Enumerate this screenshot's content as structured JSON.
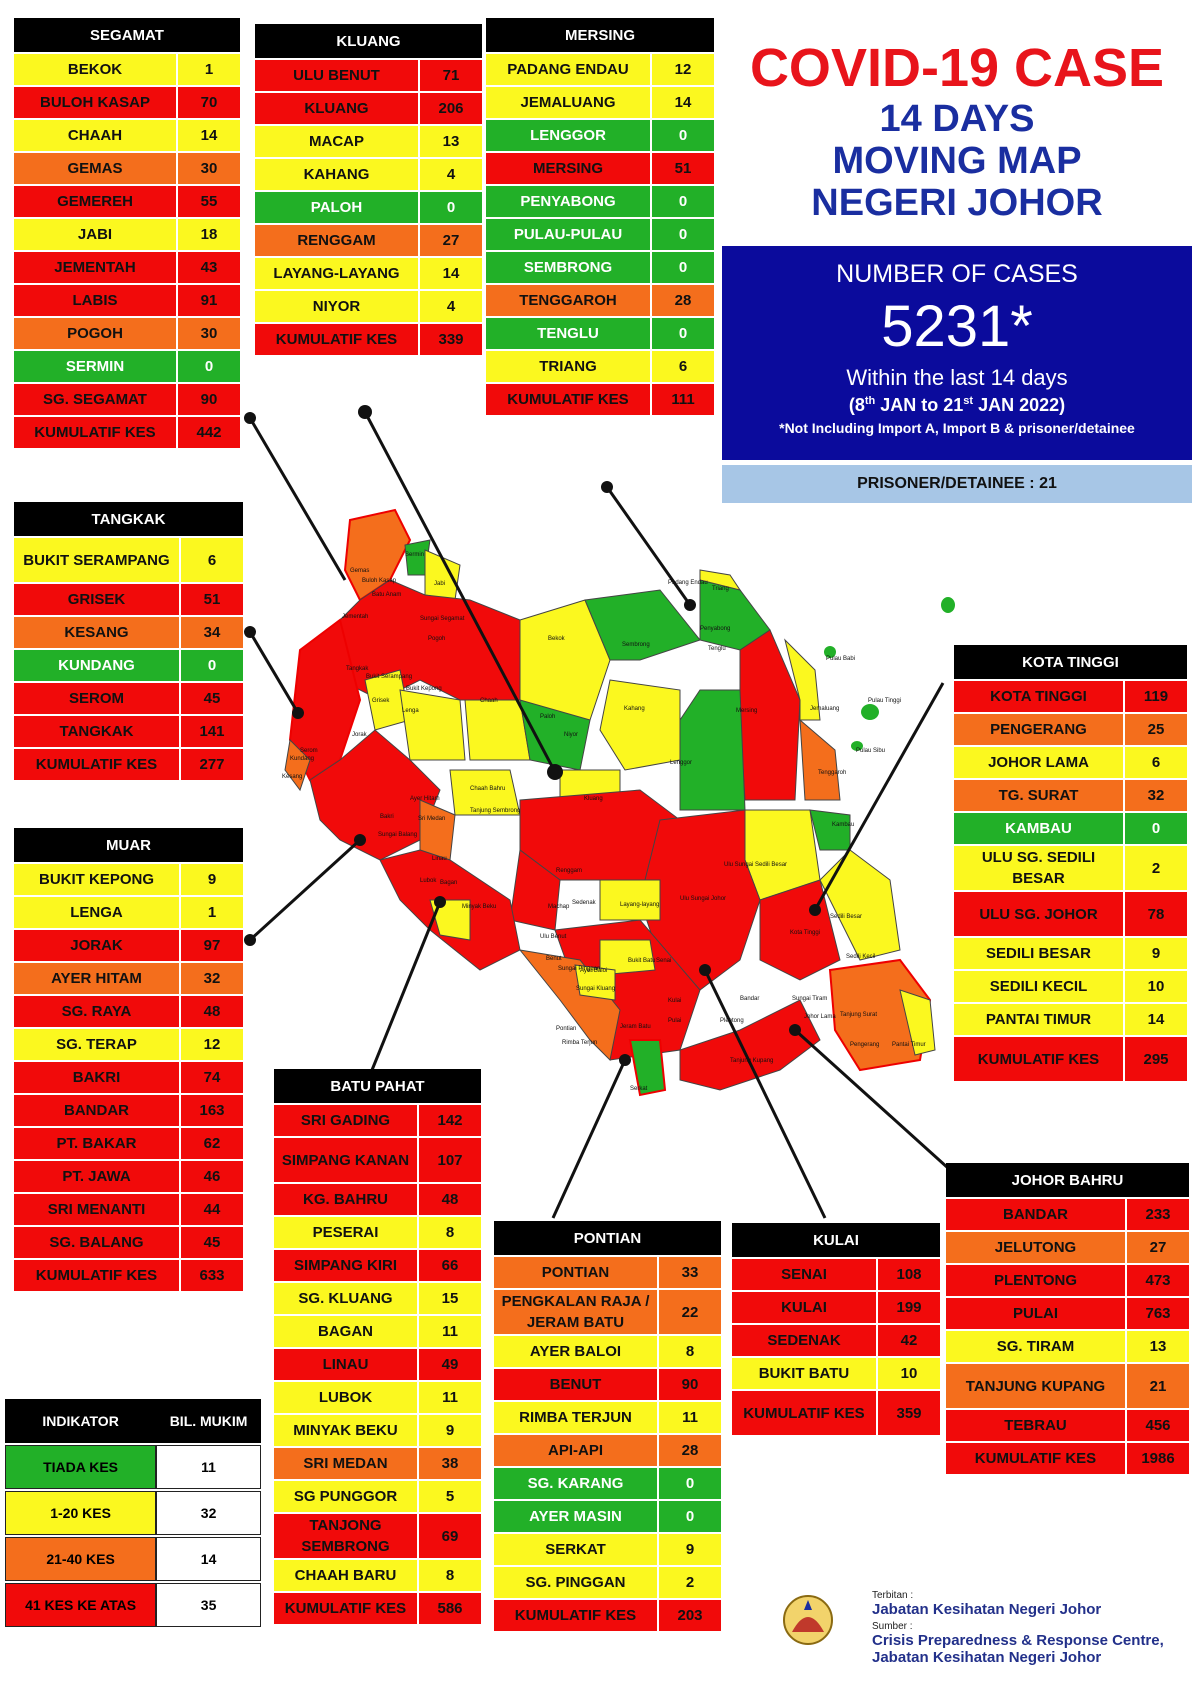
{
  "header": {
    "title_line1": "COVID-19 CASE",
    "title_line2": "14 DAYS",
    "title_line3": "MOVING MAP",
    "title_line4": "NEGERI JOHOR"
  },
  "summary": {
    "label": "NUMBER OF CASES",
    "total": "5231*",
    "window": "Within the last 14 days",
    "range_a": "(8",
    "range_a_sup": "th",
    "range_b": " JAN to 21",
    "range_b_sup": "st",
    "range_c": " JAN 2022)",
    "note": "*Not Including Import A, Import B & prisoner/detainee",
    "prisoner": "PRISONER/DETAINEE : 21"
  },
  "colors": {
    "green": "#22b028",
    "yellow": "#fbf81f",
    "orange": "#f46e1c",
    "red": "#f10a0a",
    "title_red": "#e8141b",
    "title_blue": "#1a2ea0",
    "box_blue": "#0b0b9c",
    "prisoner_blue": "#a7c6e6"
  },
  "districts": {
    "segamat": {
      "name": "SEGAMAT",
      "rows": [
        {
          "name": "BEKOK",
          "val": "1",
          "c": "yellow"
        },
        {
          "name": "BULOH KASAP",
          "val": "70",
          "c": "red"
        },
        {
          "name": "CHAAH",
          "val": "14",
          "c": "yellow"
        },
        {
          "name": "GEMAS",
          "val": "30",
          "c": "orange"
        },
        {
          "name": "GEMEREH",
          "val": "55",
          "c": "red"
        },
        {
          "name": "JABI",
          "val": "18",
          "c": "yellow"
        },
        {
          "name": "JEMENTAH",
          "val": "43",
          "c": "red"
        },
        {
          "name": "LABIS",
          "val": "91",
          "c": "red"
        },
        {
          "name": "POGOH",
          "val": "30",
          "c": "orange"
        },
        {
          "name": "SERMIN",
          "val": "0",
          "c": "green"
        },
        {
          "name": "SG. SEGAMAT",
          "val": "90",
          "c": "red"
        },
        {
          "name": "KUMULATIF KES",
          "val": "442",
          "c": "red"
        }
      ]
    },
    "kluang": {
      "name": "KLUANG",
      "rows": [
        {
          "name": "ULU BENUT",
          "val": "71",
          "c": "red"
        },
        {
          "name": "KLUANG",
          "val": "206",
          "c": "red"
        },
        {
          "name": "MACAP",
          "val": "13",
          "c": "yellow"
        },
        {
          "name": "KAHANG",
          "val": "4",
          "c": "yellow"
        },
        {
          "name": "PALOH",
          "val": "0",
          "c": "green"
        },
        {
          "name": "RENGGAM",
          "val": "27",
          "c": "orange"
        },
        {
          "name": "LAYANG-LAYANG",
          "val": "14",
          "c": "yellow"
        },
        {
          "name": "NIYOR",
          "val": "4",
          "c": "yellow"
        },
        {
          "name": "KUMULATIF KES",
          "val": "339",
          "c": "red"
        }
      ]
    },
    "mersing": {
      "name": "MERSING",
      "rows": [
        {
          "name": "PADANG ENDAU",
          "val": "12",
          "c": "yellow"
        },
        {
          "name": "JEMALUANG",
          "val": "14",
          "c": "yellow"
        },
        {
          "name": "LENGGOR",
          "val": "0",
          "c": "green"
        },
        {
          "name": "MERSING",
          "val": "51",
          "c": "red"
        },
        {
          "name": "PENYABONG",
          "val": "0",
          "c": "green"
        },
        {
          "name": "PULAU-PULAU",
          "val": "0",
          "c": "green"
        },
        {
          "name": "SEMBRONG",
          "val": "0",
          "c": "green"
        },
        {
          "name": "TENGGAROH",
          "val": "28",
          "c": "orange"
        },
        {
          "name": "TENGLU",
          "val": "0",
          "c": "green"
        },
        {
          "name": "TRIANG",
          "val": "6",
          "c": "yellow"
        },
        {
          "name": "KUMULATIF KES",
          "val": "111",
          "c": "red"
        }
      ]
    },
    "tangkak": {
      "name": "TANGKAK",
      "rows": [
        {
          "name": "BUKIT SERAMPANG",
          "val": "6",
          "c": "yellow",
          "tall": true
        },
        {
          "name": "GRISEK",
          "val": "51",
          "c": "red"
        },
        {
          "name": "KESANG",
          "val": "34",
          "c": "orange"
        },
        {
          "name": "KUNDANG",
          "val": "0",
          "c": "green"
        },
        {
          "name": "SEROM",
          "val": "45",
          "c": "red"
        },
        {
          "name": "TANGKAK",
          "val": "141",
          "c": "red"
        },
        {
          "name": "KUMULATIF KES",
          "val": "277",
          "c": "red"
        }
      ]
    },
    "muar": {
      "name": "MUAR",
      "rows": [
        {
          "name": "BUKIT KEPONG",
          "val": "9",
          "c": "yellow"
        },
        {
          "name": "LENGA",
          "val": "1",
          "c": "yellow"
        },
        {
          "name": "JORAK",
          "val": "97",
          "c": "red"
        },
        {
          "name": "AYER HITAM",
          "val": "32",
          "c": "orange"
        },
        {
          "name": "SG. RAYA",
          "val": "48",
          "c": "red"
        },
        {
          "name": "SG. TERAP",
          "val": "12",
          "c": "yellow"
        },
        {
          "name": "BAKRI",
          "val": "74",
          "c": "red"
        },
        {
          "name": "BANDAR",
          "val": "163",
          "c": "red"
        },
        {
          "name": "PT. BAKAR",
          "val": "62",
          "c": "red"
        },
        {
          "name": "PT. JAWA",
          "val": "46",
          "c": "red"
        },
        {
          "name": "SRI MENANTI",
          "val": "44",
          "c": "red"
        },
        {
          "name": "SG. BALANG",
          "val": "45",
          "c": "red"
        },
        {
          "name": "KUMULATIF KES",
          "val": "633",
          "c": "red"
        }
      ]
    },
    "batupahat": {
      "name": "BATU PAHAT",
      "rows": [
        {
          "name": "SRI GADING",
          "val": "142",
          "c": "red"
        },
        {
          "name": "SIMPANG KANAN",
          "val": "107",
          "c": "red",
          "tall": true
        },
        {
          "name": "KG. BAHRU",
          "val": "48",
          "c": "red"
        },
        {
          "name": "PESERAI",
          "val": "8",
          "c": "yellow"
        },
        {
          "name": "SIMPANG KIRI",
          "val": "66",
          "c": "red"
        },
        {
          "name": "SG. KLUANG",
          "val": "15",
          "c": "yellow"
        },
        {
          "name": "BAGAN",
          "val": "11",
          "c": "yellow"
        },
        {
          "name": "LINAU",
          "val": "49",
          "c": "red"
        },
        {
          "name": "LUBOK",
          "val": "11",
          "c": "yellow"
        },
        {
          "name": "MINYAK BEKU",
          "val": "9",
          "c": "yellow"
        },
        {
          "name": "SRI MEDAN",
          "val": "38",
          "c": "orange"
        },
        {
          "name": "SG PUNGGOR",
          "val": "5",
          "c": "yellow"
        },
        {
          "name": "TANJONG SEMBRONG",
          "val": "69",
          "c": "red",
          "tall": true
        },
        {
          "name": "CHAAH BARU",
          "val": "8",
          "c": "yellow"
        },
        {
          "name": "KUMULATIF KES",
          "val": "586",
          "c": "red"
        }
      ]
    },
    "pontian": {
      "name": "PONTIAN",
      "rows": [
        {
          "name": "PONTIAN",
          "val": "33",
          "c": "orange"
        },
        {
          "name": "PENGKALAN RAJA / JERAM BATU",
          "val": "22",
          "c": "orange",
          "tall": true
        },
        {
          "name": "AYER BALOI",
          "val": "8",
          "c": "yellow"
        },
        {
          "name": "BENUT",
          "val": "90",
          "c": "red"
        },
        {
          "name": "RIMBA TERJUN",
          "val": "11",
          "c": "yellow"
        },
        {
          "name": "API-API",
          "val": "28",
          "c": "orange"
        },
        {
          "name": "SG. KARANG",
          "val": "0",
          "c": "green"
        },
        {
          "name": "AYER MASIN",
          "val": "0",
          "c": "green"
        },
        {
          "name": "SERKAT",
          "val": "9",
          "c": "yellow"
        },
        {
          "name": "SG. PINGGAN",
          "val": "2",
          "c": "yellow"
        },
        {
          "name": "KUMULATIF KES",
          "val": "203",
          "c": "red"
        }
      ]
    },
    "kulai": {
      "name": "KULAI",
      "rows": [
        {
          "name": "SENAI",
          "val": "108",
          "c": "red"
        },
        {
          "name": "KULAI",
          "val": "199",
          "c": "red"
        },
        {
          "name": "SEDENAK",
          "val": "42",
          "c": "red"
        },
        {
          "name": "BUKIT BATU",
          "val": "10",
          "c": "yellow"
        },
        {
          "name": "KUMULATIF KES",
          "val": "359",
          "c": "red",
          "tall": true
        }
      ]
    },
    "kotatinggi": {
      "name": "KOTA TINGGI",
      "rows": [
        {
          "name": "KOTA TINGGI",
          "val": "119",
          "c": "red"
        },
        {
          "name": "PENGERANG",
          "val": "25",
          "c": "orange"
        },
        {
          "name": "JOHOR LAMA",
          "val": "6",
          "c": "yellow"
        },
        {
          "name": "TG. SURAT",
          "val": "32",
          "c": "orange"
        },
        {
          "name": "KAMBAU",
          "val": "0",
          "c": "green"
        },
        {
          "name": "ULU SG. SEDILI BESAR",
          "val": "2",
          "c": "yellow",
          "tall": true
        },
        {
          "name": "ULU  SG. JOHOR",
          "val": "78",
          "c": "red",
          "tall": true
        },
        {
          "name": "SEDILI BESAR",
          "val": "9",
          "c": "yellow"
        },
        {
          "name": "SEDILI KECIL",
          "val": "10",
          "c": "yellow"
        },
        {
          "name": "PANTAI TIMUR",
          "val": "14",
          "c": "yellow"
        },
        {
          "name": "KUMULATIF KES",
          "val": "295",
          "c": "red",
          "tall": true
        }
      ]
    },
    "johorbahru": {
      "name": "JOHOR BAHRU",
      "rows": [
        {
          "name": "BANDAR",
          "val": "233",
          "c": "red"
        },
        {
          "name": "JELUTONG",
          "val": "27",
          "c": "orange"
        },
        {
          "name": "PLENTONG",
          "val": "473",
          "c": "red"
        },
        {
          "name": "PULAI",
          "val": "763",
          "c": "red"
        },
        {
          "name": "SG. TIRAM",
          "val": "13",
          "c": "yellow"
        },
        {
          "name": "TANJUNG KUPANG",
          "val": "21",
          "c": "orange",
          "tall": true
        },
        {
          "name": "TEBRAU",
          "val": "456",
          "c": "red"
        },
        {
          "name": "KUMULATIF KES",
          "val": "1986",
          "c": "red"
        }
      ]
    }
  },
  "indicator": {
    "col1": "INDIKATOR",
    "col2": "BIL. MUKIM",
    "rows": [
      {
        "label": "TIADA KES",
        "val": "11",
        "c": "green"
      },
      {
        "label": "1-20 KES",
        "val": "32",
        "c": "yellow"
      },
      {
        "label": "21-40 KES",
        "val": "14",
        "c": "orange"
      },
      {
        "label": "41 KES KE ATAS",
        "val": "35",
        "c": "red"
      }
    ]
  },
  "map_labels": [
    "Gemas",
    "Buloh Kasap",
    "Sermin",
    "Jabi",
    "Batu Anam",
    "Jementah",
    "Sungai Segamat",
    "Pogoh",
    "Bekok",
    "Sembrong",
    "Penyabong",
    "Tenglu",
    "Padang Endau",
    "Triang",
    "Pulau Babi",
    "Pulau Tinggi",
    "Pulau Sibu",
    "Tangkak",
    "Bukit Serampang",
    "Bukit Kepong",
    "Grisek",
    "Lenga",
    "Chaah",
    "Paloh",
    "Niyor",
    "Kahang",
    "Lenggor",
    "Mersing",
    "Jemaluang",
    "Tenggaroh",
    "Kesang",
    "Kundang",
    "Serom",
    "Jorak",
    "Bakri",
    "Ayer Hitam",
    "Sri Medan",
    "Chaah Bahru",
    "Tanjung Sembrong",
    "Kluang",
    "Renggam",
    "Ulu Sungai Sedili Besar",
    "Kambau",
    "Sedili Besar",
    "Ulu Sungai Johor",
    "Linau",
    "Sungai Balang",
    "Lubok",
    "Bagan",
    "Minyak Beku",
    "Machap",
    "Layang-layang",
    "Kota Tinggi",
    "Sedili Kecil",
    "Ulu Benut",
    "Sedenak",
    "Sungai Pinggan",
    "Sungai Kluang",
    "Benut",
    "Bukit Batu",
    "Ayer Baloi",
    "Senai",
    "Johor Lama",
    "Pontian",
    "Rimba Terjun",
    "Kulai",
    "Tanjung Surat",
    "Jeram Batu",
    "Serkat",
    "Pulai",
    "Plentong",
    "Bandar",
    "Sungai Tiram",
    "Tanjung Kupang",
    "Pengerang",
    "Pantai Timur"
  ],
  "footer": {
    "terbitan_label": "Terbitan :",
    "terbitan": "Jabatan Kesihatan Negeri Johor",
    "sumber_label": "Sumber :",
    "sumber1": "Crisis Preparedness & Response Centre,",
    "sumber2": "Jabatan Kesihatan Negeri Johor"
  }
}
